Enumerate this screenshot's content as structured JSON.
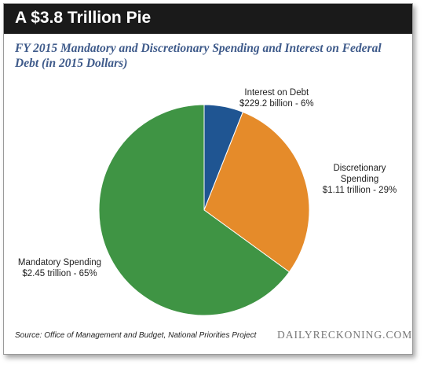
{
  "header": {
    "title": "A $3.8 Trillion Pie"
  },
  "colors": {
    "header_bg": "#1a1a1a",
    "subtitle": "#3e5a8a"
  },
  "chart_data": {
    "type": "pie",
    "title": "FY 2015 Mandatory and Discretionary Spending and Interest on Federal Debt (in 2015 Dollars)",
    "slices": [
      {
        "name": "Interest on Debt",
        "value_label": "$229.2 billion - 6%",
        "value": 229.2,
        "percent": 6,
        "color": "#1f5592"
      },
      {
        "name": "Discretionary Spending",
        "value_label": "$1.11 trillion - 29%",
        "value": 1110,
        "percent": 29,
        "color": "#e58b2a"
      },
      {
        "name": "Mandatory Spending",
        "value_label": "$2.45 trillion - 65%",
        "value": 2450,
        "percent": 65,
        "color": "#3f9444"
      }
    ],
    "labels": {
      "interest": {
        "line1": "Interest on Debt",
        "line2": "$229.2 billion - 6%"
      },
      "discretionary": {
        "line1": "Discretionary",
        "line2": "Spending",
        "line3": "$1.11 trillion - 29%"
      },
      "mandatory": {
        "line1": "Mandatory Spending",
        "line2": "$2.45 trillion - 65%"
      }
    }
  },
  "footer": {
    "source": "Source: Office of Management and Budget, National Priorities Project",
    "brand": "DAILYRECKONING.COM"
  }
}
